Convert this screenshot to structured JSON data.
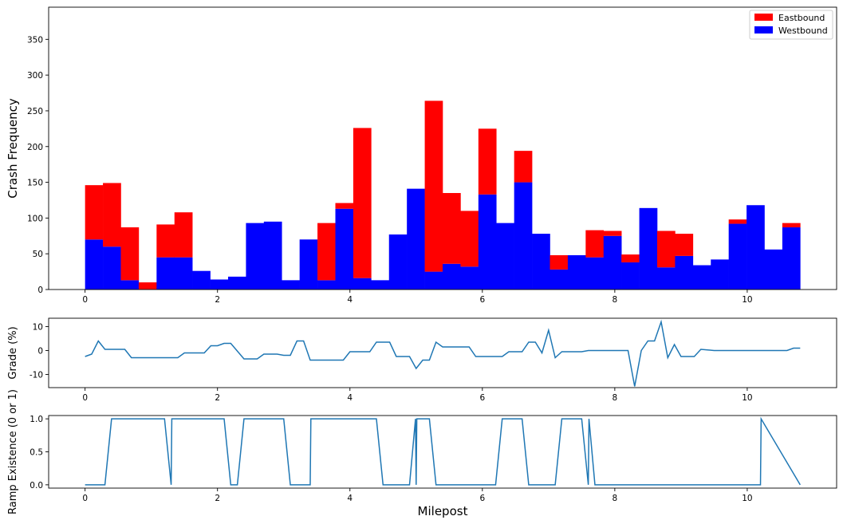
{
  "colors": {
    "eastbound": "#ff0000",
    "westbound": "#0000ff",
    "line": "#1f77b4"
  },
  "chart_data": [
    {
      "type": "bar",
      "stacked": true,
      "ylabel": "Crash Frequency",
      "xlim": [
        -0.55,
        11.35
      ],
      "ylim": [
        0,
        395
      ],
      "xticks": [
        0,
        2,
        4,
        6,
        8,
        10
      ],
      "yticks": [
        0,
        50,
        100,
        150,
        200,
        250,
        300,
        350
      ],
      "bin_start": 0.0,
      "bin_width": 0.27,
      "legend_position": "top-right",
      "series": [
        {
          "name": "Eastbound",
          "values": [
            76,
            89,
            74,
            10,
            46,
            63,
            0,
            0,
            0,
            0,
            0,
            0,
            0,
            80,
            8,
            210,
            0,
            0,
            0,
            239,
            99,
            78,
            92,
            0,
            44,
            0,
            20,
            0,
            38,
            7,
            11,
            0,
            51,
            31,
            0,
            0,
            6,
            0,
            0,
            6
          ]
        },
        {
          "name": "Westbound",
          "values": [
            70,
            60,
            13,
            0,
            45,
            45,
            26,
            14,
            18,
            93,
            95,
            13,
            70,
            13,
            113,
            16,
            13,
            77,
            141,
            25,
            36,
            32,
            133,
            93,
            150,
            78,
            28,
            48,
            45,
            75,
            38,
            114,
            31,
            47,
            34,
            42,
            92,
            118,
            56,
            87
          ]
        }
      ]
    },
    {
      "type": "line",
      "ylabel": "Grade (%)",
      "xlim": [
        -0.55,
        11.35
      ],
      "ylim": [
        -15.5,
        13.5
      ],
      "xticks": [
        0,
        2,
        4,
        6,
        8,
        10
      ],
      "yticks": [
        -10,
        0,
        10
      ],
      "x": [
        0,
        0.1,
        0.2,
        0.3,
        0.6,
        0.7,
        1.4,
        1.5,
        1.8,
        1.9,
        2.0,
        2.1,
        2.2,
        2.4,
        2.6,
        2.7,
        2.9,
        3.0,
        3.1,
        3.2,
        3.3,
        3.4,
        3.9,
        4.0,
        4.3,
        4.4,
        4.6,
        4.7,
        4.9,
        5.0,
        5.1,
        5.2,
        5.3,
        5.4,
        5.8,
        5.9,
        6.3,
        6.4,
        6.6,
        6.7,
        6.8,
        6.9,
        7.0,
        7.1,
        7.2,
        7.5,
        7.6,
        8.2,
        8.3,
        8.4,
        8.5,
        8.6,
        8.7,
        8.8,
        8.9,
        9.0,
        9.2,
        9.3,
        9.5,
        10.6,
        10.7,
        10.8
      ],
      "y": [
        -2.5,
        -1.5,
        4,
        0.5,
        0.5,
        -3,
        -3,
        -1,
        -1,
        2,
        2,
        3,
        3,
        -3.5,
        -3.5,
        -1.5,
        -1.5,
        -2,
        -2,
        4,
        4,
        -4,
        -4,
        -0.5,
        -0.5,
        3.5,
        3.5,
        -2.5,
        -2.5,
        -7.5,
        -4,
        -4,
        3.5,
        1.5,
        1.5,
        -2.5,
        -2.5,
        -0.5,
        -0.5,
        3.5,
        3.5,
        -1,
        8.5,
        -3,
        -0.5,
        -0.5,
        0,
        0,
        -15,
        0,
        4,
        4,
        12,
        -3,
        2.5,
        -2.5,
        -2.5,
        0.5,
        0,
        0,
        1,
        1
      ]
    },
    {
      "type": "line",
      "ylabel": "Ramp Existence (0 or 1)",
      "xlabel": "Milepost",
      "xlim": [
        -0.55,
        11.35
      ],
      "ylim": [
        -0.05,
        1.05
      ],
      "xticks": [
        0,
        2,
        4,
        6,
        8,
        10
      ],
      "yticks": [
        0.0,
        0.5,
        1.0
      ],
      "x": [
        0,
        0.3,
        0.4,
        1.2,
        1.3,
        1.31,
        1.4,
        2.1,
        2.2,
        2.3,
        2.4,
        3.0,
        3.1,
        3.4,
        3.41,
        3.5,
        4.4,
        4.5,
        4.9,
        4.99,
        5.0,
        5.01,
        5.2,
        5.3,
        6.2,
        6.3,
        6.6,
        6.7,
        7.1,
        7.2,
        7.5,
        7.6,
        7.61,
        7.7,
        10.2,
        10.21,
        10.8
      ],
      "y": [
        0,
        0,
        1,
        1,
        0,
        1,
        1,
        1,
        0,
        0,
        1,
        1,
        0,
        0,
        1,
        1,
        1,
        0,
        0,
        1,
        0,
        1,
        1,
        0,
        0,
        1,
        1,
        0,
        0,
        1,
        1,
        0,
        1,
        0,
        0,
        1,
        0
      ]
    }
  ]
}
